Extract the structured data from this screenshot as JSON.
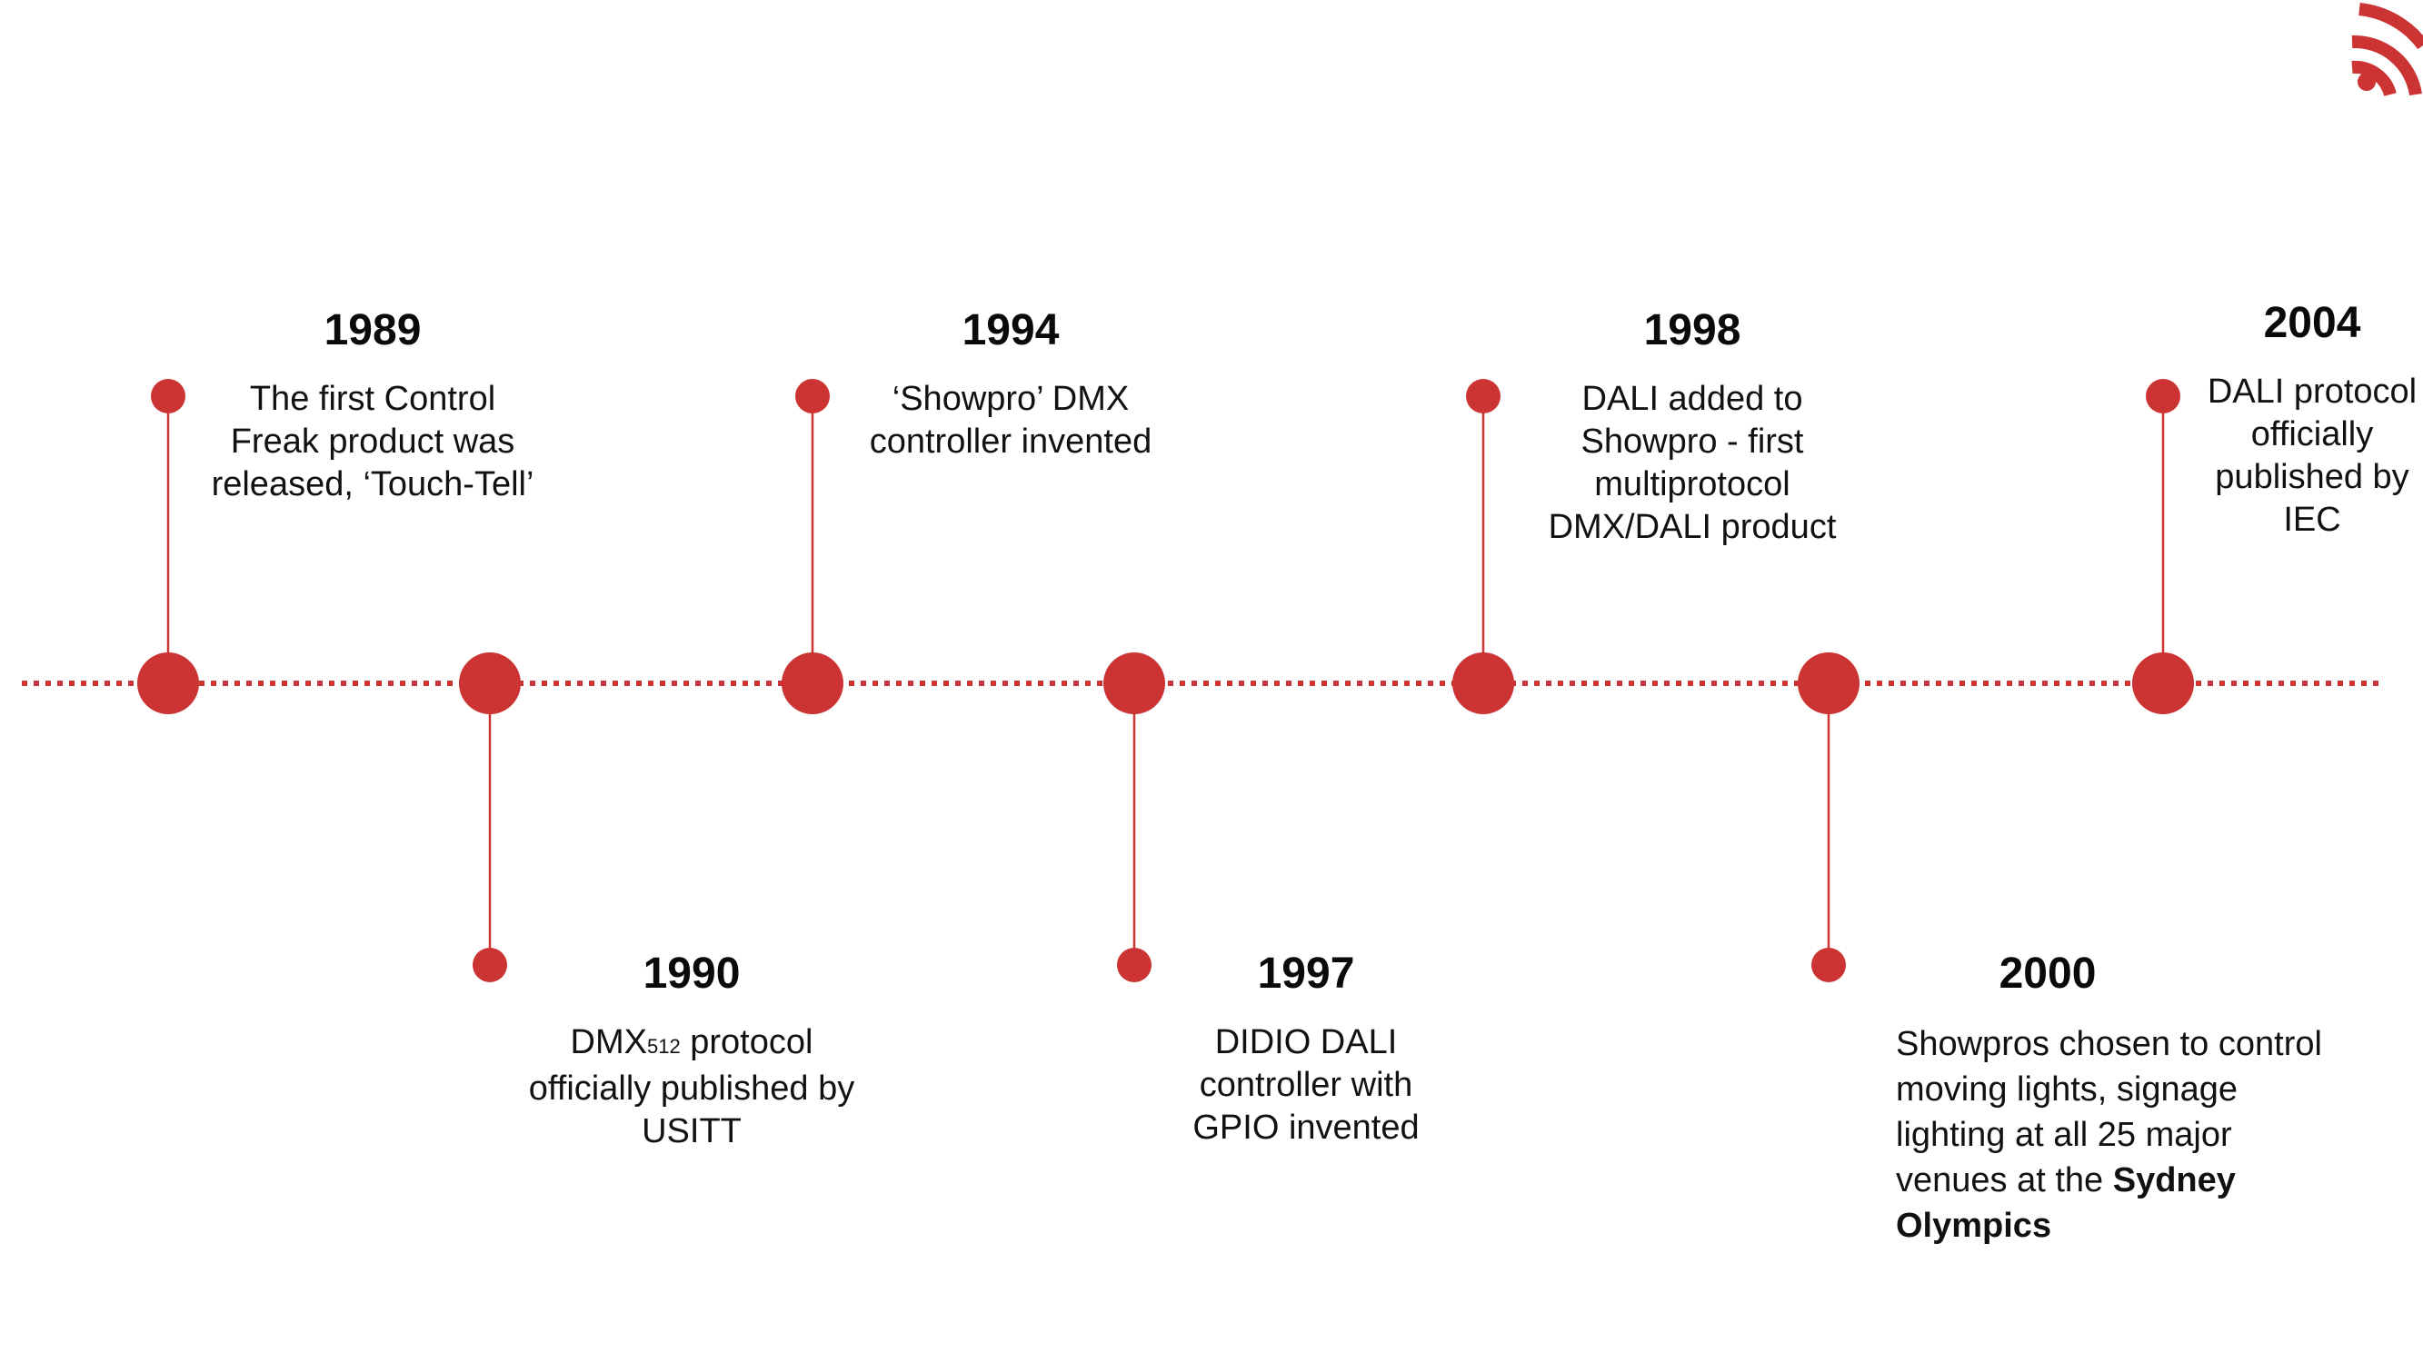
{
  "colors": {
    "accent": "#cc3333",
    "text": "#111111"
  },
  "logo": {
    "icon": "wifi-signal-icon"
  },
  "timeline": [
    {
      "year": "1989",
      "side": "top",
      "description": "The first Control Freak product was released, ‘Touch-Tell’"
    },
    {
      "year": "1990",
      "side": "bottom",
      "description_pre": "DMX",
      "description_sub": "512",
      "description_post": " protocol officially published by USITT"
    },
    {
      "year": "1994",
      "side": "top",
      "description": "‘Showpro’ DMX controller invented"
    },
    {
      "year": "1997",
      "side": "bottom",
      "description": "DIDIO DALI controller with GPIO invented"
    },
    {
      "year": "1998",
      "side": "top",
      "description": "DALI added to Showpro - first multiprotocol DMX/DALI product"
    },
    {
      "year": "2000",
      "side": "bottom",
      "description": "Showpros chosen to control moving lights, signage lighting at all 25 major venues at the",
      "description_bold": "Sydney Olympics"
    },
    {
      "year": "2004",
      "side": "top",
      "description": "DALI protocol officially published by IEC"
    }
  ]
}
